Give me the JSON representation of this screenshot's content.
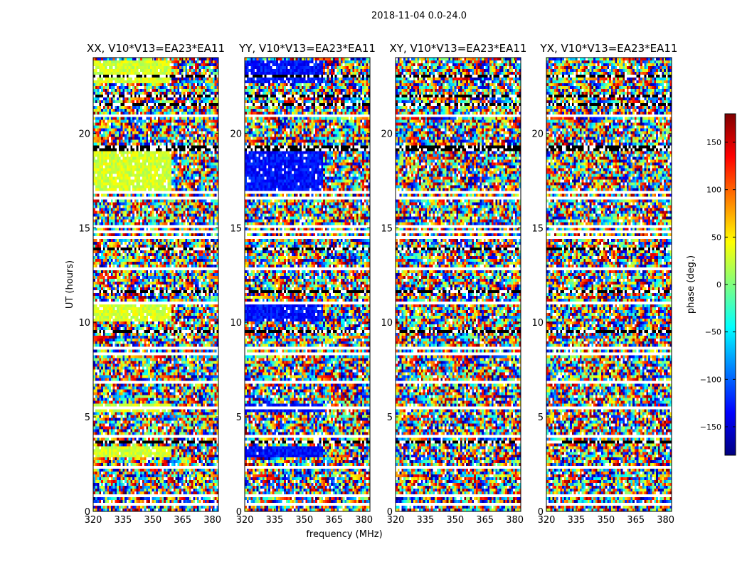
{
  "figure": {
    "suptitle": "2018-11-04 0.0-24.0",
    "xlabel": "frequency (MHz)",
    "ylabel": "UT (hours)"
  },
  "colorbar": {
    "label": "phase (deg.)",
    "range": [
      -180,
      180
    ],
    "ticks": [
      -150,
      -100,
      -50,
      0,
      50,
      100,
      150
    ],
    "colormap": [
      "#00007f",
      "#0000ff",
      "#007fff",
      "#00ffff",
      "#7fff7f",
      "#ffff00",
      "#ff7f00",
      "#ff0000",
      "#7f0000"
    ]
  },
  "chart_data": [
    {
      "type": "heatmap",
      "title": "XX, V10*V13=EA23*EA11",
      "xlim": [
        320,
        383
      ],
      "ylim": [
        0,
        24
      ],
      "xticks": [
        320,
        335,
        350,
        365,
        380
      ],
      "yticks": [
        0,
        5,
        10,
        15,
        20
      ]
    },
    {
      "type": "heatmap",
      "title": "YY, V10*V13=EA23*EA11",
      "xlim": [
        320,
        383
      ],
      "ylim": [
        0,
        24
      ],
      "xticks": [
        320,
        335,
        350,
        365,
        380
      ],
      "yticks": [
        0,
        5,
        10,
        15,
        20
      ]
    },
    {
      "type": "heatmap",
      "title": "XY, V10*V13=EA23*EA11",
      "xlim": [
        320,
        383
      ],
      "ylim": [
        0,
        24
      ],
      "xticks": [
        320,
        335,
        350,
        365,
        380
      ],
      "yticks": [
        0,
        5,
        10,
        15,
        20
      ]
    },
    {
      "type": "heatmap",
      "title": "YX, V10*V13=EA23*EA11",
      "xlim": [
        320,
        383
      ],
      "ylim": [
        0,
        24
      ],
      "xticks": [
        320,
        335,
        350,
        365,
        380
      ],
      "yticks": [
        0,
        5,
        10,
        15,
        20
      ]
    }
  ]
}
